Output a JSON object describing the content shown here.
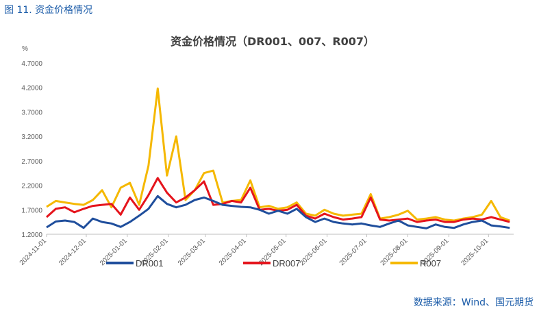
{
  "figure_caption": "图 11.  资金价格情况",
  "source": "数据来源：Wind、国元期货",
  "colors": {
    "DR001": "#1f4e9c",
    "DR007": "#e5141c",
    "R007": "#f5b800"
  },
  "chart_data": {
    "type": "line",
    "title": "资金价格情况（DR001、007、R007）",
    "ylabel": "%",
    "xlabel": "",
    "ylim": [
      1.2,
      4.7
    ],
    "yticks": [
      1.2,
      1.7,
      2.2,
      2.7,
      3.2,
      3.7,
      4.2,
      4.7
    ],
    "ytick_labels": [
      "1.2000",
      "1.7000",
      "2.2000",
      "2.7000",
      "3.2000",
      "3.7000",
      "4.2000",
      "4.7000"
    ],
    "xlim": [
      "2024-11-01",
      "2025-10-20"
    ],
    "xticks": [
      "2024-11-01",
      "2024-12-01",
      "2025-01-01",
      "2025-02-01",
      "2025-03-01",
      "2025-04-01",
      "2025-05-01",
      "2025-06-01",
      "2025-07-01",
      "2025-08-01",
      "2025-09-01",
      "2025-10-01"
    ],
    "grid": false,
    "legend_position": "bottom",
    "series": [
      {
        "name": "DR001",
        "x": [
          "2024-11-01",
          "2024-11-08",
          "2024-11-15",
          "2024-11-22",
          "2024-11-29",
          "2024-12-06",
          "2024-12-13",
          "2024-12-20",
          "2024-12-27",
          "2025-01-03",
          "2025-01-10",
          "2025-01-17",
          "2025-01-24",
          "2025-01-31",
          "2025-02-07",
          "2025-02-14",
          "2025-02-21",
          "2025-02-28",
          "2025-03-07",
          "2025-03-14",
          "2025-03-21",
          "2025-03-28",
          "2025-04-04",
          "2025-04-11",
          "2025-04-18",
          "2025-04-25",
          "2025-05-02",
          "2025-05-09",
          "2025-05-16",
          "2025-05-23",
          "2025-05-30",
          "2025-06-06",
          "2025-06-13",
          "2025-06-20",
          "2025-06-27",
          "2025-07-04",
          "2025-07-11",
          "2025-07-18",
          "2025-07-25",
          "2025-08-01",
          "2025-08-08",
          "2025-08-15",
          "2025-08-22",
          "2025-08-29",
          "2025-09-05",
          "2025-09-12",
          "2025-09-19",
          "2025-09-26",
          "2025-10-03",
          "2025-10-10",
          "2025-10-17"
        ],
        "values": [
          1.34,
          1.46,
          1.48,
          1.45,
          1.33,
          1.52,
          1.45,
          1.42,
          1.35,
          1.45,
          1.58,
          1.72,
          1.98,
          1.82,
          1.75,
          1.8,
          1.9,
          1.95,
          1.88,
          1.8,
          1.78,
          1.76,
          1.75,
          1.7,
          1.62,
          1.68,
          1.62,
          1.72,
          1.55,
          1.45,
          1.52,
          1.45,
          1.42,
          1.4,
          1.42,
          1.38,
          1.35,
          1.42,
          1.48,
          1.38,
          1.35,
          1.32,
          1.4,
          1.35,
          1.33,
          1.4,
          1.45,
          1.48,
          1.38,
          1.36,
          1.33
        ]
      },
      {
        "name": "DR007",
        "x": [
          "2024-11-01",
          "2024-11-08",
          "2024-11-15",
          "2024-11-22",
          "2024-11-29",
          "2024-12-06",
          "2024-12-13",
          "2024-12-20",
          "2024-12-27",
          "2025-01-03",
          "2025-01-10",
          "2025-01-17",
          "2025-01-24",
          "2025-01-31",
          "2025-02-07",
          "2025-02-14",
          "2025-02-21",
          "2025-02-28",
          "2025-03-07",
          "2025-03-14",
          "2025-03-21",
          "2025-03-28",
          "2025-04-04",
          "2025-04-11",
          "2025-04-18",
          "2025-04-25",
          "2025-05-02",
          "2025-05-09",
          "2025-05-16",
          "2025-05-23",
          "2025-05-30",
          "2025-06-06",
          "2025-06-13",
          "2025-06-20",
          "2025-06-27",
          "2025-07-04",
          "2025-07-11",
          "2025-07-18",
          "2025-07-25",
          "2025-08-01",
          "2025-08-08",
          "2025-08-15",
          "2025-08-22",
          "2025-08-29",
          "2025-09-05",
          "2025-09-12",
          "2025-09-19",
          "2025-09-26",
          "2025-10-03",
          "2025-10-10",
          "2025-10-17"
        ],
        "values": [
          1.55,
          1.72,
          1.75,
          1.65,
          1.72,
          1.78,
          1.8,
          1.82,
          1.6,
          1.95,
          1.7,
          2.0,
          2.35,
          2.05,
          1.85,
          1.95,
          2.1,
          2.28,
          1.8,
          1.82,
          1.88,
          1.85,
          2.15,
          1.7,
          1.72,
          1.68,
          1.7,
          1.8,
          1.58,
          1.52,
          1.62,
          1.55,
          1.5,
          1.52,
          1.55,
          1.95,
          1.5,
          1.48,
          1.5,
          1.52,
          1.45,
          1.48,
          1.5,
          1.45,
          1.45,
          1.5,
          1.52,
          1.5,
          1.55,
          1.5,
          1.45
        ]
      },
      {
        "name": "R007",
        "x": [
          "2024-11-01",
          "2024-11-08",
          "2024-11-15",
          "2024-11-22",
          "2024-11-29",
          "2024-12-06",
          "2024-12-13",
          "2024-12-20",
          "2024-12-27",
          "2025-01-03",
          "2025-01-10",
          "2025-01-17",
          "2025-01-24",
          "2025-01-31",
          "2025-02-07",
          "2025-02-14",
          "2025-02-21",
          "2025-02-28",
          "2025-03-07",
          "2025-03-14",
          "2025-03-21",
          "2025-03-28",
          "2025-04-04",
          "2025-04-11",
          "2025-04-18",
          "2025-04-25",
          "2025-05-02",
          "2025-05-09",
          "2025-05-16",
          "2025-05-23",
          "2025-05-30",
          "2025-06-06",
          "2025-06-13",
          "2025-06-20",
          "2025-06-27",
          "2025-07-04",
          "2025-07-11",
          "2025-07-18",
          "2025-07-25",
          "2025-08-01",
          "2025-08-08",
          "2025-08-15",
          "2025-08-22",
          "2025-08-29",
          "2025-09-05",
          "2025-09-12",
          "2025-09-19",
          "2025-09-26",
          "2025-10-03",
          "2025-10-10",
          "2025-10-17"
        ],
        "values": [
          1.76,
          1.88,
          1.85,
          1.82,
          1.8,
          1.9,
          2.1,
          1.75,
          2.15,
          2.25,
          1.8,
          2.6,
          4.18,
          2.4,
          3.2,
          1.9,
          2.1,
          2.45,
          2.5,
          1.85,
          1.88,
          1.9,
          2.3,
          1.75,
          1.78,
          1.72,
          1.75,
          1.85,
          1.62,
          1.58,
          1.7,
          1.62,
          1.58,
          1.6,
          1.62,
          2.02,
          1.52,
          1.55,
          1.6,
          1.68,
          1.5,
          1.52,
          1.55,
          1.5,
          1.48,
          1.52,
          1.55,
          1.6,
          1.88,
          1.55,
          1.48
        ]
      }
    ]
  }
}
